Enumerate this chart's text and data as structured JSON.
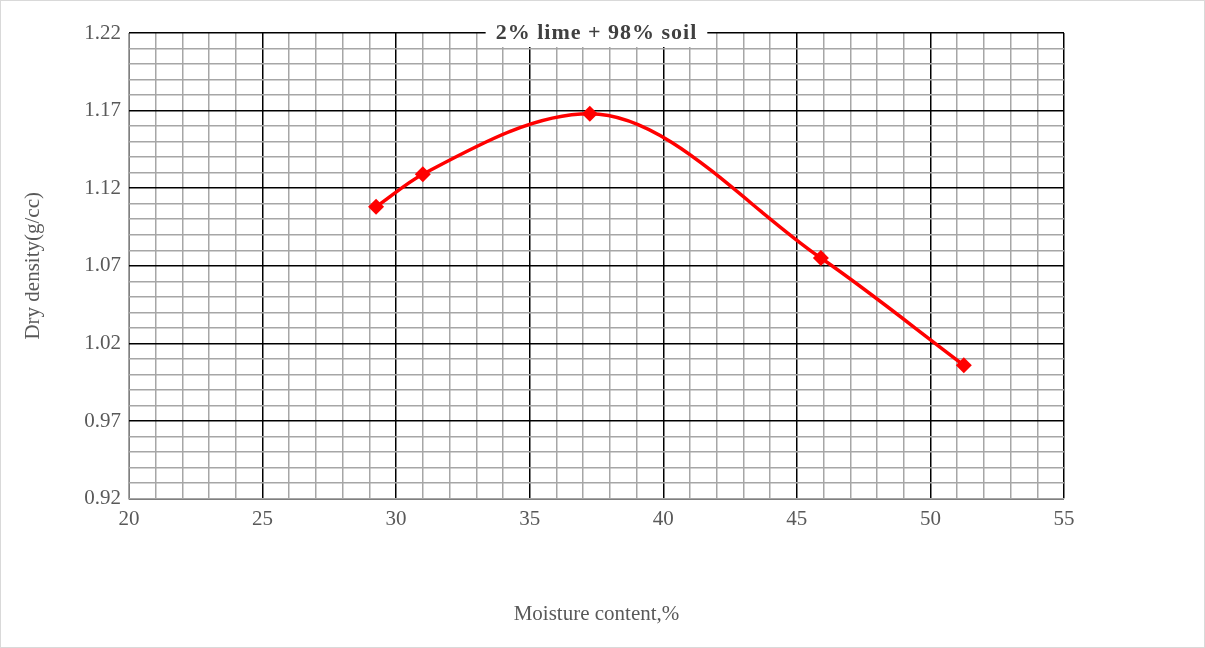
{
  "chart_data": {
    "type": "line",
    "title": "2% lime + 98% soil",
    "xlabel": "Moisture content,%",
    "ylabel": "Dry density(g/cc)",
    "x": [
      29.25,
      31.0,
      37.25,
      45.9,
      51.25
    ],
    "series": [
      {
        "color": "#ff0000",
        "values": [
          1.108,
          1.129,
          1.168,
          1.075,
          1.006
        ]
      }
    ],
    "xlim": [
      20,
      55
    ],
    "xticks": [
      20,
      {
        "value": 21,
        "label": null
      },
      {
        "value": 22,
        "label": null
      },
      {
        "value": 23,
        "label": null
      },
      {
        "value": 24,
        "label": null
      },
      25,
      {
        "value": 26,
        "label": null
      },
      {
        "value": 27,
        "label": null
      },
      {
        "value": 28,
        "label": null
      },
      {
        "value": 29,
        "label": null
      },
      30,
      {
        "value": 31,
        "label": null
      },
      {
        "value": 32,
        "label": null
      },
      {
        "value": 33,
        "label": null
      },
      {
        "value": 34,
        "label": null
      },
      35,
      {
        "value": 36,
        "label": null
      },
      {
        "value": 37,
        "label": null
      },
      {
        "value": 38,
        "label": null
      },
      {
        "value": 39,
        "label": null
      },
      40,
      {
        "value": 41,
        "label": null
      },
      {
        "value": 42,
        "label": null
      },
      {
        "value": 43,
        "label": null
      },
      {
        "value": 44,
        "label": null
      },
      45,
      {
        "value": 46,
        "label": null
      },
      {
        "value": 47,
        "label": null
      },
      {
        "value": 48,
        "label": null
      },
      {
        "value": 49,
        "label": null
      },
      50,
      {
        "value": 51,
        "label": null
      },
      {
        "value": 52,
        "label": null
      },
      {
        "value": 53,
        "label": null
      },
      {
        "value": 54,
        "label": null
      },
      55
    ],
    "ylim": [
      0.92,
      1.22
    ],
    "yticks": [
      0.92,
      {
        "value": 0.93,
        "label": null
      },
      {
        "value": 0.94,
        "label": null
      },
      {
        "value": 0.95,
        "label": null
      },
      {
        "value": 0.96,
        "label": null
      },
      0.97,
      {
        "value": 0.98,
        "label": null
      },
      {
        "value": 0.99,
        "label": null
      },
      {
        "value": 1.0,
        "label": null
      },
      {
        "value": 1.01,
        "label": null
      },
      1.02,
      {
        "value": 1.03,
        "label": null
      },
      {
        "value": 1.04,
        "label": null
      },
      {
        "value": 1.05,
        "label": null
      },
      {
        "value": 1.06,
        "label": null
      },
      1.07,
      {
        "value": 1.08,
        "label": null
      },
      {
        "value": 1.09,
        "label": null
      },
      {
        "value": 1.1,
        "label": null
      },
      {
        "value": 1.11,
        "label": null
      },
      1.12,
      {
        "value": 1.13,
        "label": null
      },
      {
        "value": 1.14,
        "label": null
      },
      {
        "value": 1.15,
        "label": null
      },
      {
        "value": 1.16,
        "label": null
      },
      1.17,
      {
        "value": 1.18,
        "label": null
      },
      {
        "value": 1.19,
        "label": null
      },
      {
        "value": 1.2,
        "label": null
      },
      {
        "value": 1.21,
        "label": null
      },
      1.22
    ],
    "grid": true,
    "marker": "diamond",
    "line_style": "solid"
  }
}
